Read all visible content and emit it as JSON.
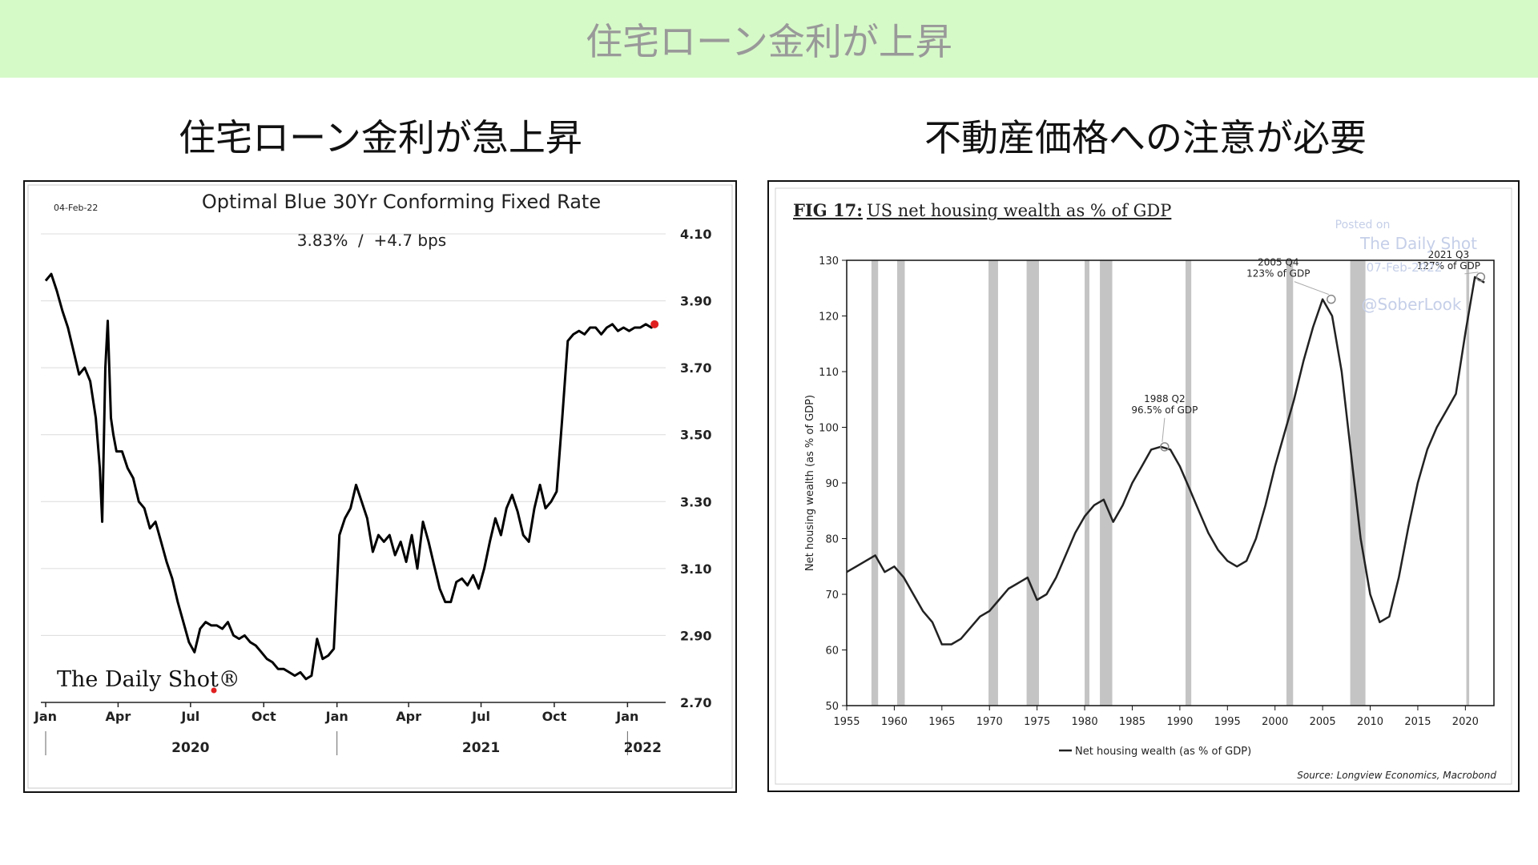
{
  "page": {
    "banner_title": "住宅ローン金利が上昇",
    "left_heading": "住宅ローン金利が急上昇",
    "right_heading": "不動産価格への注意が必要"
  },
  "chart_data": [
    {
      "type": "line",
      "title": "Optimal Blue 30Yr Conforming Fixed Rate",
      "date_label": "04-Feb-22",
      "subtitle": "3.83%  /  +4.7 bps",
      "watermark": "The Daily Shot®",
      "y_ticks": [
        "4.10",
        "3.90",
        "3.70",
        "3.50",
        "3.30",
        "3.10",
        "2.90",
        "2.70"
      ],
      "ylim": [
        2.7,
        4.1
      ],
      "x_ticks": [
        "Jan",
        "Apr",
        "Jul",
        "Oct",
        "Jan",
        "Apr",
        "Jul",
        "Oct",
        "Jan"
      ],
      "x_years": [
        "2020",
        "2021",
        "2022"
      ],
      "grid": true,
      "line_color": "#000000",
      "last_point_color": "#e02020",
      "x": [
        "2020-01-01",
        "2020-01-08",
        "2020-01-15",
        "2020-01-22",
        "2020-01-29",
        "2020-02-05",
        "2020-02-12",
        "2020-02-19",
        "2020-02-26",
        "2020-03-04",
        "2020-03-09",
        "2020-03-12",
        "2020-03-16",
        "2020-03-19",
        "2020-03-23",
        "2020-03-26",
        "2020-03-30",
        "2020-04-06",
        "2020-04-13",
        "2020-04-20",
        "2020-04-27",
        "2020-05-04",
        "2020-05-11",
        "2020-05-18",
        "2020-05-25",
        "2020-06-01",
        "2020-06-08",
        "2020-06-15",
        "2020-06-22",
        "2020-06-29",
        "2020-07-06",
        "2020-07-13",
        "2020-07-20",
        "2020-07-27",
        "2020-08-03",
        "2020-08-10",
        "2020-08-17",
        "2020-08-24",
        "2020-08-31",
        "2020-09-07",
        "2020-09-14",
        "2020-09-21",
        "2020-09-28",
        "2020-10-05",
        "2020-10-12",
        "2020-10-19",
        "2020-10-26",
        "2020-11-02",
        "2020-11-09",
        "2020-11-16",
        "2020-11-23",
        "2020-11-30",
        "2020-12-07",
        "2020-12-14",
        "2020-12-21",
        "2020-12-28",
        "2021-01-04",
        "2021-01-11",
        "2021-01-18",
        "2021-01-25",
        "2021-02-01",
        "2021-02-08",
        "2021-02-15",
        "2021-02-22",
        "2021-03-01",
        "2021-03-08",
        "2021-03-15",
        "2021-03-22",
        "2021-03-29",
        "2021-04-05",
        "2021-04-12",
        "2021-04-19",
        "2021-04-26",
        "2021-05-03",
        "2021-05-10",
        "2021-05-17",
        "2021-05-24",
        "2021-05-31",
        "2021-06-07",
        "2021-06-14",
        "2021-06-21",
        "2021-06-28",
        "2021-07-05",
        "2021-07-12",
        "2021-07-19",
        "2021-07-26",
        "2021-08-02",
        "2021-08-09",
        "2021-08-16",
        "2021-08-23",
        "2021-08-30",
        "2021-09-06",
        "2021-09-13",
        "2021-09-20",
        "2021-09-27",
        "2021-10-04",
        "2021-10-11",
        "2021-10-18",
        "2021-10-25",
        "2021-11-01",
        "2021-11-08",
        "2021-11-15",
        "2021-11-22",
        "2021-11-29",
        "2021-12-06",
        "2021-12-13",
        "2021-12-20",
        "2021-12-27",
        "2022-01-03",
        "2022-01-10",
        "2022-01-17",
        "2022-01-24",
        "2022-01-31",
        "2022-02-04"
      ],
      "values": [
        3.96,
        3.98,
        3.93,
        3.87,
        3.82,
        3.75,
        3.68,
        3.7,
        3.66,
        3.55,
        3.4,
        3.24,
        3.7,
        3.84,
        3.55,
        3.5,
        3.45,
        3.45,
        3.4,
        3.37,
        3.3,
        3.28,
        3.22,
        3.24,
        3.18,
        3.12,
        3.07,
        3.0,
        2.94,
        2.88,
        2.85,
        2.92,
        2.94,
        2.93,
        2.93,
        2.92,
        2.94,
        2.9,
        2.89,
        2.9,
        2.88,
        2.87,
        2.85,
        2.83,
        2.82,
        2.8,
        2.8,
        2.79,
        2.78,
        2.79,
        2.77,
        2.78,
        2.89,
        2.83,
        2.84,
        2.86,
        3.2,
        3.25,
        3.28,
        3.35,
        3.3,
        3.25,
        3.15,
        3.2,
        3.18,
        3.2,
        3.14,
        3.18,
        3.12,
        3.2,
        3.1,
        3.24,
        3.18,
        3.11,
        3.04,
        3.0,
        3.0,
        3.06,
        3.07,
        3.05,
        3.08,
        3.04,
        3.1,
        3.18,
        3.25,
        3.2,
        3.28,
        3.32,
        3.27,
        3.2,
        3.18,
        3.28,
        3.35,
        3.28,
        3.3,
        3.33,
        3.55,
        3.78,
        3.8,
        3.81,
        3.8,
        3.82,
        3.82,
        3.8,
        3.82,
        3.83,
        3.81,
        3.82,
        3.81,
        3.82,
        3.82,
        3.83,
        3.82,
        3.83
      ]
    },
    {
      "type": "line",
      "title_prefix": "FIG 17:",
      "title": "US net housing wealth as % of GDP",
      "ylabel": "Net housing wealth (as % of GDP)",
      "legend": "Net housing wealth (as % of GDP)",
      "legend_position": "bottom",
      "source": "Source: Longview Economics, Macrobond",
      "watermark_lines": [
        "Posted on",
        "The Daily Shot",
        "07-Feb-2022",
        "@SoberLook"
      ],
      "xlim": [
        1955,
        2023
      ],
      "ylim": [
        50,
        130
      ],
      "y_ticks": [
        50,
        60,
        70,
        80,
        90,
        100,
        110,
        120,
        130
      ],
      "x_ticks": [
        1955,
        1960,
        1965,
        1970,
        1975,
        1980,
        1985,
        1990,
        1995,
        2000,
        2005,
        2010,
        2015,
        2020
      ],
      "recessions": [
        [
          1957.6,
          1958.3
        ],
        [
          1960.3,
          1961.1
        ],
        [
          1969.9,
          1970.9
        ],
        [
          1973.9,
          1975.2
        ],
        [
          1980.0,
          1980.5
        ],
        [
          1981.6,
          1982.9
        ],
        [
          1990.6,
          1991.2
        ],
        [
          2001.2,
          2001.9
        ],
        [
          2007.9,
          2009.5
        ],
        [
          2020.1,
          2020.4
        ]
      ],
      "annotations": [
        {
          "label": "1988 Q2",
          "text": "96.5% of GDP",
          "x": 1988.4,
          "y": 96.5
        },
        {
          "label": "2005 Q4",
          "text": "123% of GDP",
          "x": 2005.9,
          "y": 123
        },
        {
          "label": "2021 Q3",
          "text": "127% of GDP",
          "x": 2021.6,
          "y": 127
        }
      ],
      "x": [
        1955,
        1956,
        1957,
        1958,
        1959,
        1960,
        1961,
        1962,
        1963,
        1964,
        1965,
        1966,
        1967,
        1968,
        1969,
        1970,
        1971,
        1972,
        1973,
        1974,
        1975,
        1976,
        1977,
        1978,
        1979,
        1980,
        1981,
        1982,
        1983,
        1984,
        1985,
        1986,
        1987,
        1988,
        1989,
        1990,
        1991,
        1992,
        1993,
        1994,
        1995,
        1996,
        1997,
        1998,
        1999,
        2000,
        2001,
        2002,
        2003,
        2004,
        2005,
        2006,
        2007,
        2008,
        2009,
        2010,
        2011,
        2012,
        2013,
        2014,
        2015,
        2016,
        2017,
        2018,
        2019,
        2020,
        2021,
        2022
      ],
      "values": [
        74,
        75,
        76,
        77,
        74,
        75,
        73,
        70,
        67,
        65,
        61,
        61,
        62,
        64,
        66,
        67,
        69,
        71,
        72,
        73,
        69,
        70,
        73,
        77,
        81,
        84,
        86,
        87,
        83,
        86,
        90,
        93,
        96,
        96.5,
        96,
        93,
        89,
        85,
        81,
        78,
        76,
        75,
        76,
        80,
        86,
        93,
        99,
        105,
        112,
        118,
        123,
        120,
        110,
        95,
        80,
        70,
        65,
        66,
        73,
        82,
        90,
        96,
        100,
        103,
        106,
        117,
        127,
        126
      ]
    }
  ]
}
